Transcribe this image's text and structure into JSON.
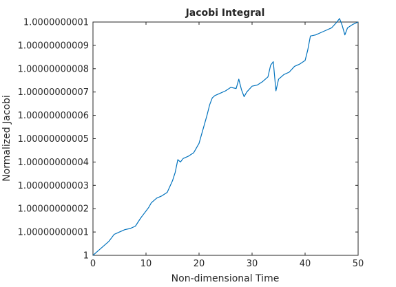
{
  "chart_data": {
    "type": "line",
    "title": "Jacobi Integral",
    "xlabel": "Non-dimensional Time",
    "ylabel": "Normalized Jacobi",
    "xlim": [
      0,
      50
    ],
    "ylim": [
      1.0,
      1.0000000001
    ],
    "xticks": [
      0,
      10,
      20,
      30,
      40,
      50
    ],
    "xtick_labels": [
      "0",
      "10",
      "20",
      "30",
      "40",
      "50"
    ],
    "yticks": [
      1.0,
      1.00000000001,
      1.00000000002,
      1.00000000003,
      1.00000000004,
      1.00000000005,
      1.00000000006,
      1.00000000007,
      1.00000000008,
      1.00000000009,
      1.0000000001
    ],
    "ytick_labels": [
      "1",
      "1.00000000001",
      "1.00000000002",
      "1.00000000003",
      "1.00000000004",
      "1.00000000005",
      "1.00000000006",
      "1.00000000007",
      "1.00000000008",
      "1.00000000009",
      "1.0000000001"
    ],
    "grid": false,
    "series": [
      {
        "color": "#0072bd",
        "x": [
          0,
          0.5,
          1,
          1.5,
          2,
          2.5,
          3,
          3.5,
          4,
          4.5,
          5,
          6,
          7,
          8,
          9,
          9.5,
          10,
          10.5,
          11,
          12,
          13,
          14,
          15,
          15.5,
          16,
          16.5,
          17,
          18,
          19,
          20,
          20.5,
          21,
          21.5,
          22,
          22.5,
          23,
          24,
          25,
          26,
          27,
          27.5,
          28,
          28.5,
          29,
          30,
          31,
          32,
          33,
          33.5,
          34,
          34.5,
          35,
          36,
          37,
          38,
          39,
          40,
          40.5,
          41,
          42,
          43,
          44,
          45,
          46,
          46.5,
          47,
          47.5,
          48,
          49,
          50
        ],
        "values": [
          1.0,
          1.000000000001,
          1.000000000002,
          1.000000000003,
          1.000000000004,
          1.000000000005,
          1.000000000006,
          1.0000000000075,
          1.000000000009,
          1.0000000000095,
          1.00000000001,
          1.000000000011,
          1.0000000000115,
          1.0000000000125,
          1.000000000016,
          1.0000000000175,
          1.000000000019,
          1.0000000000205,
          1.0000000000225,
          1.0000000000245,
          1.0000000000255,
          1.000000000027,
          1.000000000032,
          1.0000000000355,
          1.000000000041,
          1.00000000004,
          1.0000000000415,
          1.0000000000425,
          1.000000000044,
          1.000000000048,
          1.000000000052,
          1.000000000056,
          1.00000000006,
          1.0000000000645,
          1.0000000000675,
          1.0000000000685,
          1.0000000000695,
          1.0000000000705,
          1.000000000072,
          1.0000000000715,
          1.0000000000755,
          1.000000000071,
          1.000000000068,
          1.00000000007,
          1.0000000000725,
          1.000000000073,
          1.0000000000745,
          1.0000000000765,
          1.0000000000815,
          1.000000000083,
          1.0000000000705,
          1.0000000000755,
          1.0000000000775,
          1.0000000000785,
          1.000000000081,
          1.000000000082,
          1.0000000000835,
          1.000000000088,
          1.000000000094,
          1.0000000000945,
          1.0000000000955,
          1.0000000000965,
          1.0000000000975,
          1.0000000001,
          1.0000000001015,
          1.0000000000985,
          1.0000000000945,
          1.0000000000975,
          1.000000000099,
          1.0000000001
        ]
      }
    ]
  }
}
